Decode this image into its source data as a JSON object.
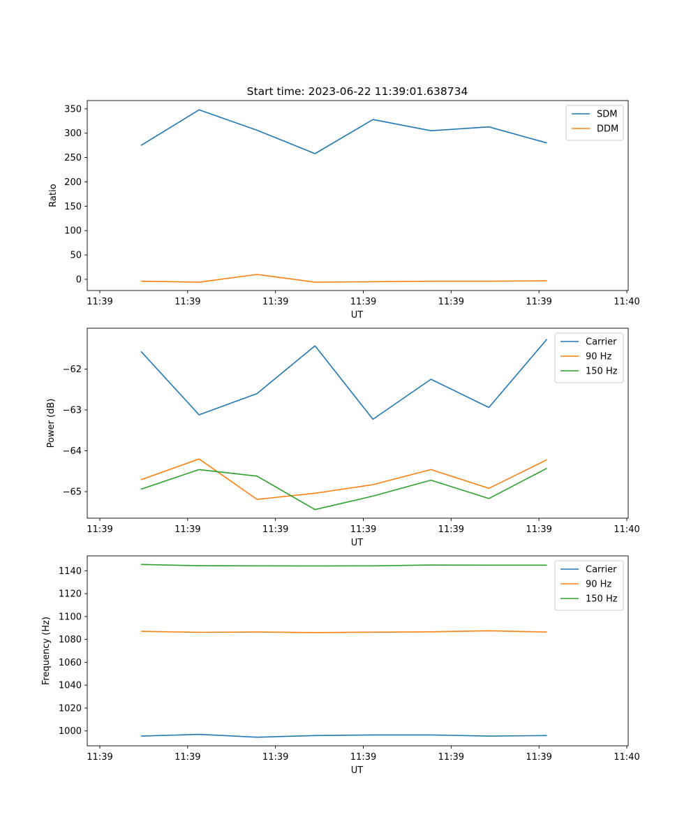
{
  "colors": {
    "blue": "#1f77b4",
    "orange": "#ff7f0e",
    "green": "#2ca02c"
  },
  "chart_data": [
    {
      "type": "line",
      "title": "Start time: 2023-06-22 11:39:01.638734",
      "xlabel": "UT",
      "ylabel": "Ratio",
      "x_tick_labels": [
        "11:39",
        "11:39",
        "11:39",
        "11:39",
        "11:39",
        "11:39",
        "11:40"
      ],
      "xlim": [
        0,
        6
      ],
      "x_tick_positions": [
        0,
        1,
        2,
        3,
        4,
        5,
        6
      ],
      "x": [
        0.47,
        1.13,
        1.79,
        2.45,
        3.11,
        3.77,
        4.43,
        5.09
      ],
      "ylim": [
        -23,
        367
      ],
      "y_ticks": [
        0,
        50,
        100,
        150,
        200,
        250,
        300,
        350
      ],
      "legend_position": "top-right",
      "series": [
        {
          "name": "SDM",
          "color": "blue",
          "values": [
            275,
            348,
            306,
            258,
            328,
            305,
            313,
            280
          ]
        },
        {
          "name": "DDM",
          "color": "orange",
          "values": [
            -4,
            -6,
            10,
            -6,
            -5,
            -4,
            -4,
            -3
          ]
        }
      ]
    },
    {
      "type": "line",
      "title": "",
      "xlabel": "UT",
      "ylabel": "Power (dB)",
      "x_tick_labels": [
        "11:39",
        "11:39",
        "11:39",
        "11:39",
        "11:39",
        "11:39",
        "11:40"
      ],
      "xlim": [
        0,
        6
      ],
      "x_tick_positions": [
        0,
        1,
        2,
        3,
        4,
        5,
        6
      ],
      "x": [
        0.47,
        1.13,
        1.79,
        2.45,
        3.11,
        3.77,
        4.43,
        5.09
      ],
      "ylim": [
        -65.65,
        -61.0
      ],
      "y_ticks": [
        -65,
        -64,
        -63,
        -62
      ],
      "y_tick_labels": [
        "−65",
        "−64",
        "−63",
        "−62"
      ],
      "legend_position": "top-right",
      "series": [
        {
          "name": "Carrier",
          "color": "blue",
          "values": [
            -61.57,
            -63.12,
            -62.6,
            -61.43,
            -63.23,
            -62.25,
            -62.94,
            -61.27
          ]
        },
        {
          "name": "90 Hz",
          "color": "orange",
          "values": [
            -64.71,
            -64.2,
            -65.19,
            -65.04,
            -64.83,
            -64.46,
            -64.92,
            -64.22
          ]
        },
        {
          "name": "150 Hz",
          "color": "green",
          "values": [
            -64.94,
            -64.46,
            -64.62,
            -65.44,
            -65.11,
            -64.72,
            -65.17,
            -64.43
          ]
        }
      ]
    },
    {
      "type": "line",
      "title": "",
      "xlabel": "UT",
      "ylabel": "Frequency (Hz)",
      "x_tick_labels": [
        "11:39",
        "11:39",
        "11:39",
        "11:39",
        "11:39",
        "11:39",
        "11:40"
      ],
      "xlim": [
        0,
        6
      ],
      "x_tick_positions": [
        0,
        1,
        2,
        3,
        4,
        5,
        6
      ],
      "x": [
        0.47,
        1.13,
        1.79,
        2.45,
        3.11,
        3.77,
        4.43,
        5.09
      ],
      "ylim": [
        987,
        1153
      ],
      "y_ticks": [
        1000,
        1020,
        1040,
        1060,
        1080,
        1100,
        1120,
        1140
      ],
      "legend_position": "top-right",
      "series": [
        {
          "name": "Carrier",
          "color": "blue",
          "values": [
            995.5,
            997,
            994.5,
            996,
            996.5,
            996.5,
            995.5,
            996
          ]
        },
        {
          "name": "90 Hz",
          "color": "orange",
          "values": [
            1087,
            1086.2,
            1086.4,
            1086,
            1086.3,
            1086.6,
            1087.5,
            1086.4
          ]
        },
        {
          "name": "150 Hz",
          "color": "green",
          "values": [
            1145.5,
            1144.4,
            1144.3,
            1144.2,
            1144.3,
            1145,
            1144.9,
            1144.9
          ]
        }
      ]
    }
  ]
}
